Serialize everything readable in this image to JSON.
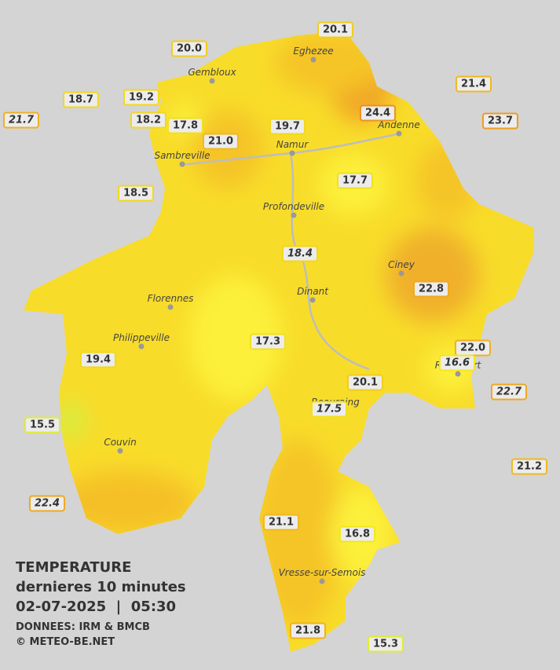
{
  "legend": {
    "title": "TEMPERATURE",
    "subtitle": "dernieres 10 minutes",
    "datetime": "02-07-2025  |  05:30",
    "source": "DONNEES: IRM & BMCB",
    "copyright": "© METEO-BE.NET"
  },
  "cities": [
    {
      "name": "Eghezee"
    },
    {
      "name": "Gembloux"
    },
    {
      "name": "Andenne"
    },
    {
      "name": "Namur"
    },
    {
      "name": "Sambreville"
    },
    {
      "name": "Profondeville"
    },
    {
      "name": "Ciney"
    },
    {
      "name": "Dinant"
    },
    {
      "name": "Florennes"
    },
    {
      "name": "Philippeville"
    },
    {
      "name": "Rochefort"
    },
    {
      "name": "Beauraing"
    },
    {
      "name": "Couvin"
    },
    {
      "name": "Vresse-sur-Semois"
    }
  ],
  "stations": [
    {
      "label": "20.0",
      "color": "#f2cc1a",
      "italic": false
    },
    {
      "label": "20.1",
      "color": "#f2cc1a",
      "italic": false
    },
    {
      "label": "18.7",
      "color": "#f2d81a",
      "italic": false
    },
    {
      "label": "19.2",
      "color": "#f2d81a",
      "italic": false
    },
    {
      "label": "21.7",
      "color": "#f0b020",
      "italic": true
    },
    {
      "label": "18.2",
      "color": "#f2d81a",
      "italic": false
    },
    {
      "label": "17.8",
      "color": "#f2e01a",
      "italic": false
    },
    {
      "label": "21.0",
      "color": "#f0b820",
      "italic": false
    },
    {
      "label": "19.7",
      "color": "#f2d81a",
      "italic": false
    },
    {
      "label": "24.4",
      "color": "#ec9020",
      "italic": false
    },
    {
      "label": "21.4",
      "color": "#f0b820",
      "italic": false
    },
    {
      "label": "23.7",
      "color": "#ee9c20",
      "italic": false
    },
    {
      "label": "18.5",
      "color": "#f2d81a",
      "italic": false
    },
    {
      "label": "17.7",
      "color": "#f2e01a",
      "italic": false
    },
    {
      "label": "18.4",
      "color": "#f2d81a",
      "italic": true
    },
    {
      "label": "22.8",
      "color": "#f0a820",
      "italic": false
    },
    {
      "label": "17.3",
      "color": "#f2e01a",
      "italic": false
    },
    {
      "label": "22.0",
      "color": "#f0b020",
      "italic": false
    },
    {
      "label": "16.6",
      "color": "#f2e81a",
      "italic": true
    },
    {
      "label": "19.4",
      "color": "#f2d81a",
      "italic": false
    },
    {
      "label": "20.1",
      "color": "#f2cc1a",
      "italic": false
    },
    {
      "label": "22.7",
      "color": "#f0a820",
      "italic": true
    },
    {
      "label": "17.5",
      "color": "#f2e01a",
      "italic": true
    },
    {
      "label": "15.5",
      "color": "#e0ec30",
      "italic": false
    },
    {
      "label": "21.2",
      "color": "#f0b820",
      "italic": false
    },
    {
      "label": "22.4",
      "color": "#f0a820",
      "italic": true
    },
    {
      "label": "21.1",
      "color": "#f0b820",
      "italic": false
    },
    {
      "label": "16.8",
      "color": "#f2e81a",
      "italic": false
    },
    {
      "label": "21.8",
      "color": "#f0b020",
      "italic": false
    },
    {
      "label": "15.3",
      "color": "#e0ec30",
      "italic": false
    }
  ]
}
